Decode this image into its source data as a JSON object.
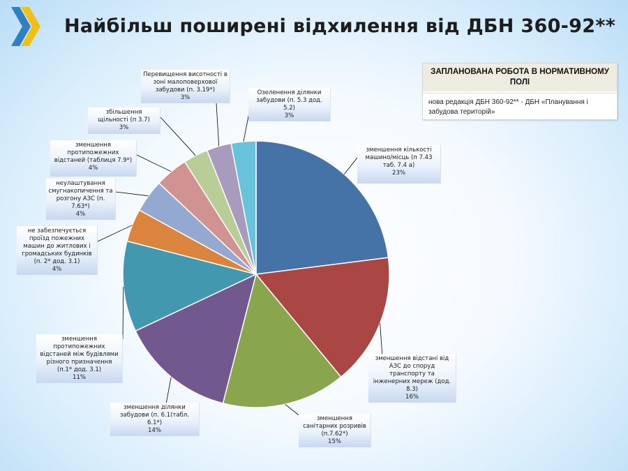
{
  "header": {
    "title": "Найбільш поширені відхилення від ДБН 360-92**"
  },
  "colors": {
    "logo_blue": "#2f7fc1",
    "logo_yellow": "#f2c012",
    "leader_line": "#000000"
  },
  "plan_box": {
    "heading": "ЗАПЛАНОВАНА РОБОТА В НОРМАТИВНОМУ ПОЛІ",
    "body": "нова редакція ДБН 360-92** - ДБН «Планування і забудова територій»"
  },
  "chart_data": {
    "type": "pie",
    "start_angle_deg": 0,
    "direction": "clockwise",
    "slices": [
      {
        "label": "зменшення кількості машино/місць (п 7.43 таб. 7.4 а)",
        "value": 23,
        "value_label": "23%",
        "color": "#4572a7"
      },
      {
        "label": "зменшення відстані від АЗС до споруд транспорту та інженерних мереж (дод. 8.3)",
        "value": 16,
        "value_label": "16%",
        "color": "#aa4643"
      },
      {
        "label": "зменшення санітарних розривів (п.7.62*)",
        "value": 15,
        "value_label": "15%",
        "color": "#89a54e"
      },
      {
        "label": "зменшення ділянки забудови (п. 6.1(табл. 6.1*)",
        "value": 14,
        "value_label": "14%",
        "color": "#71588f"
      },
      {
        "label": "зменшення протипожежних відстаней між будівлями різного призначення (п.1* дод. 3.1)",
        "value": 11,
        "value_label": "11%",
        "color": "#4198af"
      },
      {
        "label": "не забезпечується проїзд пожежних машин до житлових і громадських будинків (п. 2* дод. 3.1)",
        "value": 4,
        "value_label": "4%",
        "color": "#db843d"
      },
      {
        "label": "неулаштування смугнакопичення та розгону АЗС (п. 7.63*)",
        "value": 4,
        "value_label": "4%",
        "color": "#93a9cf"
      },
      {
        "label": "зменшення протипожежних відстаней (таблиця 7.9*)",
        "value": 4,
        "value_label": "4%",
        "color": "#d19392"
      },
      {
        "label": "збільшення щільності (п 3.7)",
        "value": 3,
        "value_label": "3%",
        "color": "#b9cd96"
      },
      {
        "label": "Перевищення висотності в зоні малоповерхової забудови (п. 3.19*)",
        "value": 3,
        "value_label": "3%",
        "color": "#a99bbd"
      },
      {
        "label": "Озеленення ділянки забудови (п. 5.3 дод. 5.2)",
        "value": 3,
        "value_label": "3%",
        "color": "#66c3d9"
      }
    ]
  }
}
